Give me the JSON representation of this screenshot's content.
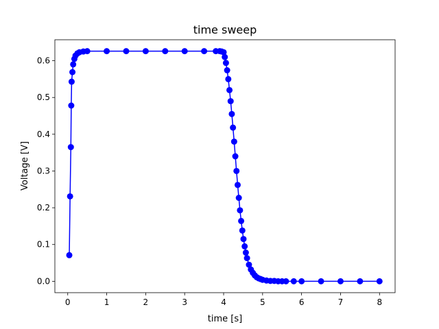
{
  "chart_data": {
    "type": "line",
    "title": "time sweep",
    "xlabel": "time [s]",
    "ylabel": "Voltage [V]",
    "xlim": [
      -0.33,
      8.4
    ],
    "ylim": [
      -0.031,
      0.657
    ],
    "xticks": [
      0,
      1,
      2,
      3,
      4,
      5,
      6,
      7,
      8
    ],
    "yticks": [
      0.0,
      0.1,
      0.2,
      0.3,
      0.4,
      0.5,
      0.6
    ],
    "grid": false,
    "legend": "none",
    "series": [
      {
        "color": "#0000ff",
        "marker": "circle",
        "x": [
          0.04,
          0.06,
          0.08,
          0.09,
          0.1,
          0.12,
          0.14,
          0.17,
          0.2,
          0.25,
          0.3,
          0.4,
          0.5,
          1.0,
          1.5,
          2.0,
          2.5,
          3.0,
          3.5,
          3.8,
          3.9,
          3.95,
          4.0,
          4.03,
          4.06,
          4.09,
          4.12,
          4.15,
          4.18,
          4.21,
          4.24,
          4.27,
          4.3,
          4.33,
          4.36,
          4.39,
          4.42,
          4.45,
          4.48,
          4.51,
          4.54,
          4.57,
          4.6,
          4.65,
          4.7,
          4.75,
          4.8,
          4.85,
          4.9,
          4.95,
          5.0,
          5.1,
          5.2,
          5.3,
          5.4,
          5.5,
          5.6,
          5.8,
          6.0,
          6.5,
          7.0,
          7.5,
          8.0
        ],
        "y": [
          0.071,
          0.231,
          0.365,
          0.478,
          0.543,
          0.569,
          0.59,
          0.605,
          0.614,
          0.62,
          0.623,
          0.625,
          0.626,
          0.626,
          0.626,
          0.626,
          0.626,
          0.626,
          0.626,
          0.626,
          0.626,
          0.625,
          0.623,
          0.61,
          0.594,
          0.574,
          0.55,
          0.52,
          0.49,
          0.455,
          0.418,
          0.38,
          0.34,
          0.3,
          0.262,
          0.227,
          0.193,
          0.164,
          0.138,
          0.115,
          0.095,
          0.078,
          0.063,
          0.045,
          0.032,
          0.023,
          0.016,
          0.011,
          0.008,
          0.006,
          0.004,
          0.002,
          0.001,
          0.001,
          0.0,
          0.0,
          0.0,
          0.0,
          0.0,
          0.0,
          0.0,
          0.0,
          0.0
        ]
      }
    ]
  }
}
